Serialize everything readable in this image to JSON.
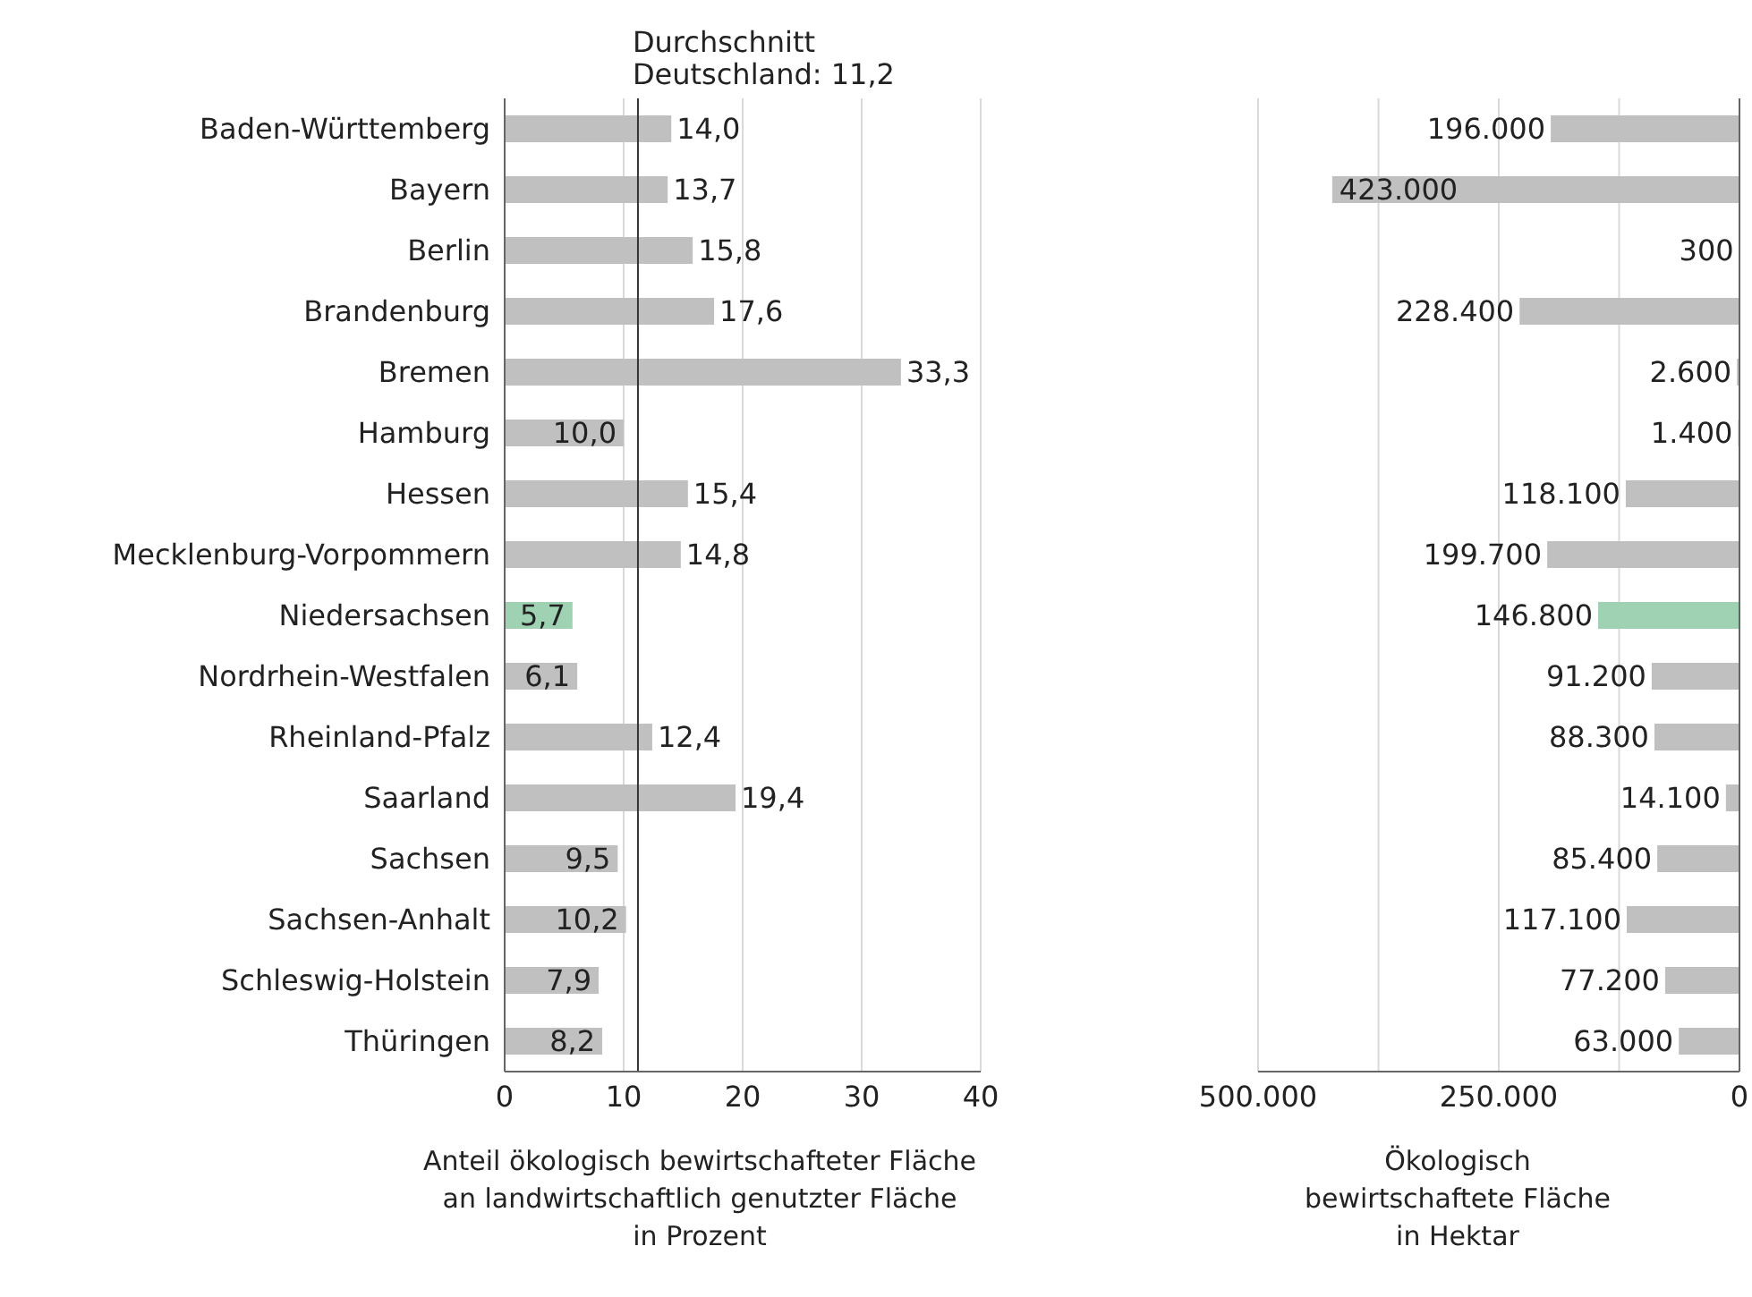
{
  "chart_data": [
    {
      "type": "bar",
      "orientation": "horizontal",
      "categories": [
        "Baden-Württemberg",
        "Bayern",
        "Berlin",
        "Brandenburg",
        "Bremen",
        "Hamburg",
        "Hessen",
        "Mecklenburg-Vorpommern",
        "Niedersachsen",
        "Nordrhein-Westfalen",
        "Rheinland-Pfalz",
        "Saarland",
        "Sachsen",
        "Sachsen-Anhalt",
        "Schleswig-Holstein",
        "Thüringen"
      ],
      "values": [
        14.0,
        13.7,
        15.8,
        17.6,
        33.3,
        10.0,
        15.4,
        14.8,
        5.7,
        6.1,
        12.4,
        19.4,
        9.5,
        10.2,
        7.9,
        8.2
      ],
      "value_labels": [
        "14,0",
        "13,7",
        "15,8",
        "17,6",
        "33,3",
        "10,0",
        "15,4",
        "14,8",
        "5,7",
        "6,1",
        "12,4",
        "19,4",
        "9,5",
        "10,2",
        "7,9",
        "8,2"
      ],
      "colors": [
        "#c0c0c0",
        "#c0c0c0",
        "#c0c0c0",
        "#c0c0c0",
        "#c0c0c0",
        "#c0c0c0",
        "#c0c0c0",
        "#c0c0c0",
        "#9fd2b3",
        "#c0c0c0",
        "#c0c0c0",
        "#c0c0c0",
        "#c0c0c0",
        "#c0c0c0",
        "#c0c0c0",
        "#c0c0c0"
      ],
      "xlim": [
        0,
        40
      ],
      "xticks": [
        0,
        10,
        20,
        30,
        40
      ],
      "grid": "x",
      "xlabel": "Anteil ökologisch bewirtschafteter Fläche\nan landwirtschaftlich genutzter Fläche\nin Prozent",
      "ref_lines": [
        {
          "axis": "x",
          "value": 11.2,
          "label": "Durchschnitt\nDeutschland: 11,2",
          "color": "#333333"
        }
      ]
    },
    {
      "type": "bar",
      "orientation": "horizontal",
      "categories": [
        null,
        null,
        null,
        null,
        null,
        null,
        null,
        null,
        null,
        null,
        null,
        null,
        null,
        null,
        null,
        null
      ],
      "values": [
        196000,
        423000,
        300,
        228400,
        2600,
        1400,
        118100,
        199700,
        146800,
        91200,
        88300,
        14100,
        85400,
        117100,
        77200,
        63000
      ],
      "value_labels": [
        "196.000",
        "423.000",
        "300",
        "228.400",
        "2.600",
        "1.400",
        "118.100",
        "199.700",
        "146.800",
        "91.200",
        "88.300",
        "14.100",
        "85.400",
        "117.100",
        "77.200",
        "63.000"
      ],
      "colors": [
        "#c0c0c0",
        "#c0c0c0",
        "#c0c0c0",
        "#c0c0c0",
        "#c0c0c0",
        "#c0c0c0",
        "#c0c0c0",
        "#c0c0c0",
        "#9fd2b3",
        "#c0c0c0",
        "#c0c0c0",
        "#c0c0c0",
        "#c0c0c0",
        "#c0c0c0",
        "#c0c0c0",
        "#c0c0c0"
      ],
      "xlim": [
        500000,
        0
      ],
      "xticks": [
        {
          "value": 500000,
          "label": "500.000"
        },
        {
          "value": 375000,
          "label": null
        },
        {
          "value": 250000,
          "label": "250.000"
        },
        {
          "value": 125000,
          "label": null
        },
        {
          "value": 0,
          "label": "0"
        }
      ],
      "grid": "x",
      "tick_labels": "x",
      "xlabel": "Ökologisch\nbewirtschaftete Fläche\nin Hektar"
    }
  ]
}
